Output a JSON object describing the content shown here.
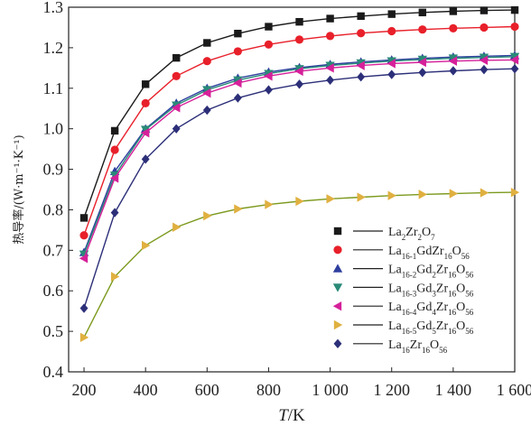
{
  "chart_data": {
    "type": "line",
    "xlabel": "T/K",
    "xlabel_italic": "T",
    "xlabel_rest": "/K",
    "ylabel": "热导率/(W·m⁻¹·K⁻¹)",
    "xlim": [
      150,
      1600
    ],
    "ylim": [
      0.4,
      1.3
    ],
    "x_ticks": [
      200,
      400,
      600,
      800,
      1000,
      1200,
      1400,
      1600
    ],
    "x_tick_labels": [
      "200",
      "400",
      "600",
      "800",
      "1 000",
      "1 200",
      "1 400",
      "1 600"
    ],
    "y_ticks": [
      0.4,
      0.5,
      0.6,
      0.7,
      0.8,
      0.9,
      1.0,
      1.1,
      1.2,
      1.3
    ],
    "y_tick_labels": [
      "0.4",
      "0.5",
      "0.6",
      "0.7",
      "0.8",
      "0.9",
      "1.0",
      "1.1",
      "1.2",
      "1.3"
    ],
    "grid": false,
    "legend_position": "right-middle",
    "x": [
      200,
      300,
      400,
      500,
      600,
      700,
      800,
      900,
      1000,
      1100,
      1200,
      1300,
      1400,
      1500,
      1600
    ],
    "series": [
      {
        "name": "La2Zr2O7",
        "legend_parts": [
          [
            "La",
            ""
          ],
          [
            "2",
            "sub"
          ],
          [
            "Zr",
            ""
          ],
          [
            "2",
            "sub"
          ],
          [
            "O",
            ""
          ],
          [
            "7",
            "sub"
          ]
        ],
        "color": "#1a1a1a",
        "marker": "square",
        "values": [
          0.78,
          0.995,
          1.11,
          1.175,
          1.212,
          1.235,
          1.252,
          1.264,
          1.272,
          1.278,
          1.283,
          1.287,
          1.29,
          1.292,
          1.293
        ]
      },
      {
        "name": "La16-1GdZr16O56",
        "legend_parts": [
          [
            "La",
            ""
          ],
          [
            "16-1",
            "sub"
          ],
          [
            "GdZr",
            ""
          ],
          [
            "16",
            "sub"
          ],
          [
            "O",
            ""
          ],
          [
            "56",
            "sub"
          ]
        ],
        "color": "#e8202a",
        "marker": "circle",
        "values": [
          0.737,
          0.948,
          1.063,
          1.13,
          1.167,
          1.191,
          1.208,
          1.22,
          1.229,
          1.236,
          1.241,
          1.245,
          1.248,
          1.25,
          1.252
        ]
      },
      {
        "name": "La16-2Gd2Zr16O56",
        "legend_parts": [
          [
            "La",
            ""
          ],
          [
            "16-2",
            "sub"
          ],
          [
            "Gd",
            ""
          ],
          [
            "2",
            "sub"
          ],
          [
            "Zr",
            ""
          ],
          [
            "16",
            "sub"
          ],
          [
            "O",
            ""
          ],
          [
            "56",
            "sub"
          ]
        ],
        "color": "#2e3f9e",
        "marker": "triangle-up",
        "values": [
          0.695,
          0.895,
          1.0,
          1.063,
          1.1,
          1.125,
          1.14,
          1.151,
          1.159,
          1.165,
          1.17,
          1.174,
          1.177,
          1.179,
          1.181
        ]
      },
      {
        "name": "La16-3Gd3Zr16O56",
        "legend_parts": [
          [
            "La",
            ""
          ],
          [
            "16-3",
            "sub"
          ],
          [
            "Gd",
            ""
          ],
          [
            "3",
            "sub"
          ],
          [
            "Zr",
            ""
          ],
          [
            "16",
            "sub"
          ],
          [
            "O",
            ""
          ],
          [
            "56",
            "sub"
          ]
        ],
        "color": "#2a8a78",
        "marker": "triangle-down",
        "values": [
          0.69,
          0.885,
          0.998,
          1.058,
          1.096,
          1.12,
          1.136,
          1.148,
          1.156,
          1.162,
          1.167,
          1.171,
          1.174,
          1.176,
          1.178
        ]
      },
      {
        "name": "La16-4Gd4Zr16O56",
        "legend_parts": [
          [
            "La",
            ""
          ],
          [
            "16-4",
            "sub"
          ],
          [
            "Gd",
            ""
          ],
          [
            "4",
            "sub"
          ],
          [
            "Zr",
            ""
          ],
          [
            "16",
            "sub"
          ],
          [
            "O",
            ""
          ],
          [
            "56",
            "sub"
          ]
        ],
        "color": "#d6209a",
        "marker": "triangle-left",
        "values": [
          0.68,
          0.878,
          0.99,
          1.052,
          1.088,
          1.113,
          1.13,
          1.142,
          1.15,
          1.156,
          1.161,
          1.164,
          1.167,
          1.169,
          1.17
        ]
      },
      {
        "name": "La16-5Gd5Zr16O56",
        "legend_parts": [
          [
            "La",
            ""
          ],
          [
            "16-5",
            "sub"
          ],
          [
            "Gd",
            ""
          ],
          [
            "5",
            "sub"
          ],
          [
            "Zr",
            ""
          ],
          [
            "16",
            "sub"
          ],
          [
            "O",
            ""
          ],
          [
            "56",
            "sub"
          ]
        ],
        "color": "#7c9a1e",
        "marker": "triangle-right",
        "marker_color": "#e0b040",
        "values": [
          0.485,
          0.635,
          0.712,
          0.757,
          0.785,
          0.802,
          0.813,
          0.821,
          0.827,
          0.831,
          0.835,
          0.838,
          0.84,
          0.842,
          0.843
        ]
      },
      {
        "name": "La16Zr16O56",
        "legend_parts": [
          [
            "La",
            ""
          ],
          [
            "16",
            "sub"
          ],
          [
            "Zr",
            ""
          ],
          [
            "16",
            "sub"
          ],
          [
            "O",
            ""
          ],
          [
            "56",
            "sub"
          ]
        ],
        "color": "#2c2f78",
        "marker": "diamond",
        "values": [
          0.557,
          0.793,
          0.925,
          1.0,
          1.046,
          1.076,
          1.096,
          1.11,
          1.12,
          1.128,
          1.134,
          1.139,
          1.143,
          1.146,
          1.148
        ]
      }
    ]
  }
}
